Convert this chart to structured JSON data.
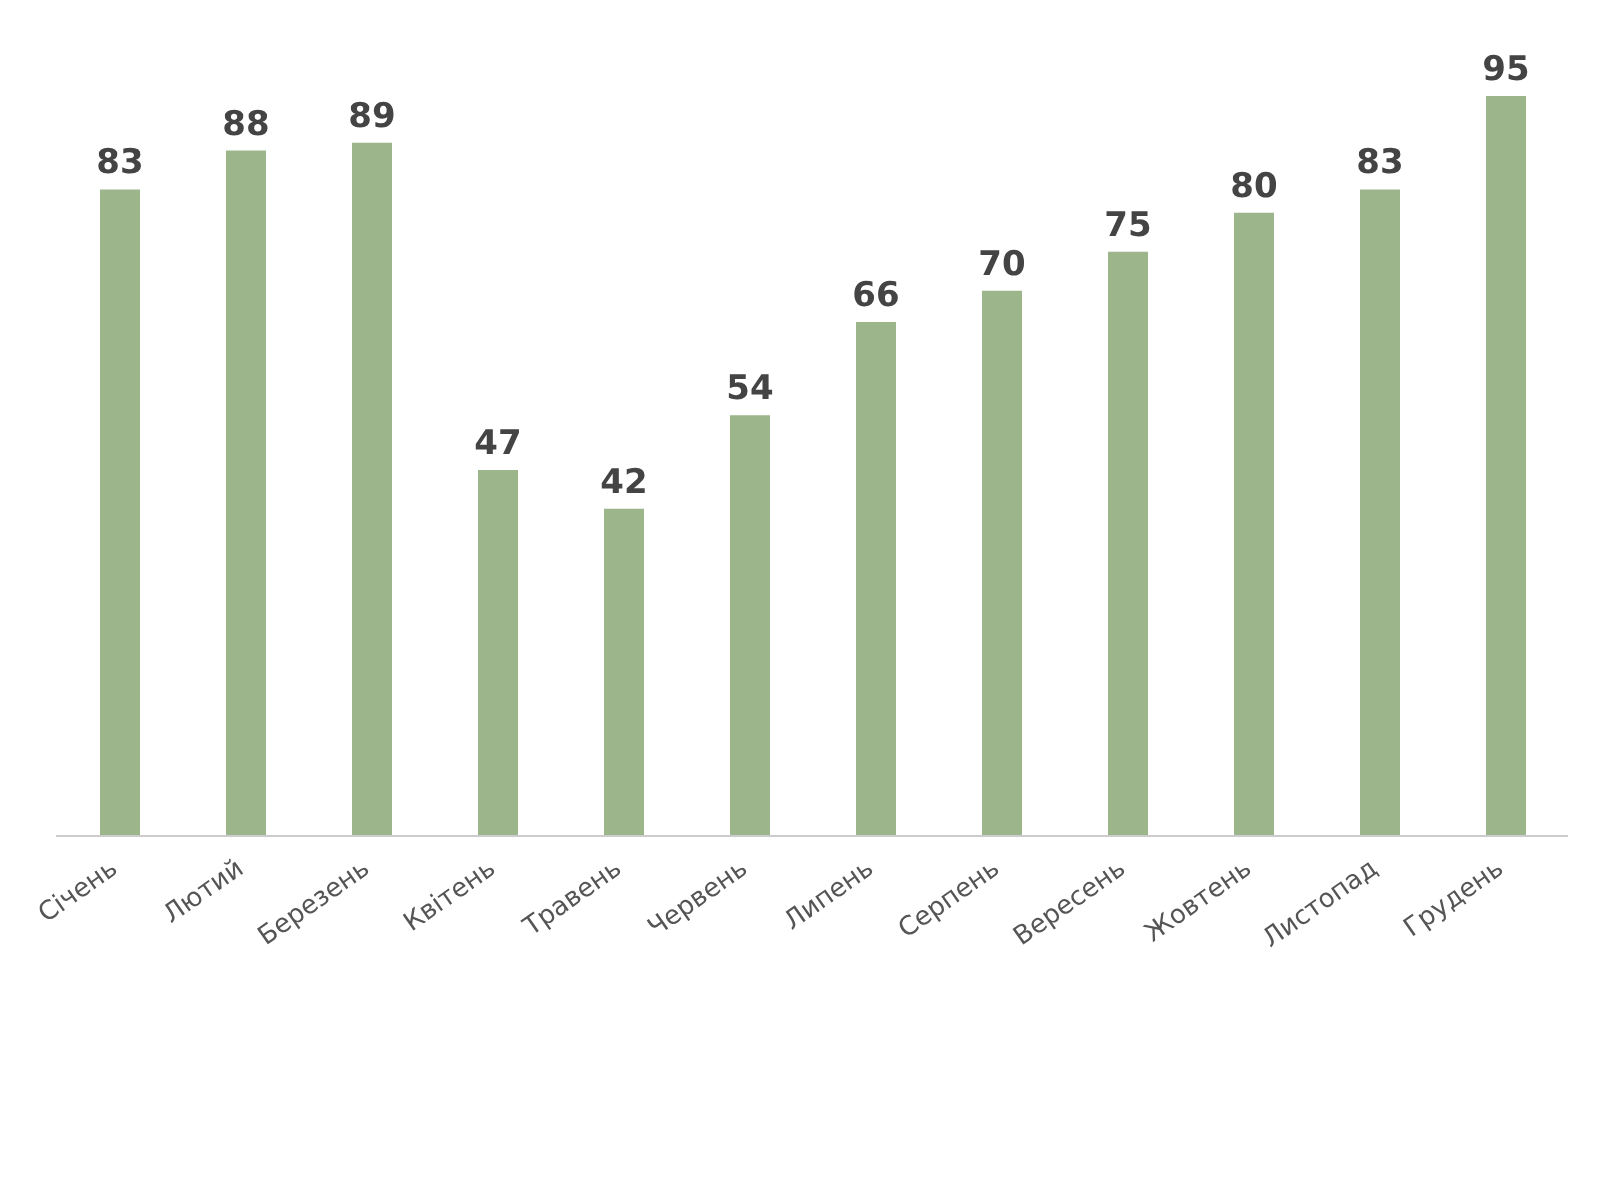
{
  "chart_data": {
    "type": "bar",
    "categories": [
      "Січень",
      "Лютий",
      "Березень",
      "Квітень",
      "Травень",
      "Червень",
      "Липень",
      "Серпень",
      "Вересень",
      "Жовтень",
      "Листопад",
      "Грудень"
    ],
    "values": [
      83,
      88,
      89,
      47,
      42,
      54,
      66,
      70,
      75,
      80,
      83,
      95
    ],
    "color": "#9cb58a",
    "data_labels": true
  }
}
